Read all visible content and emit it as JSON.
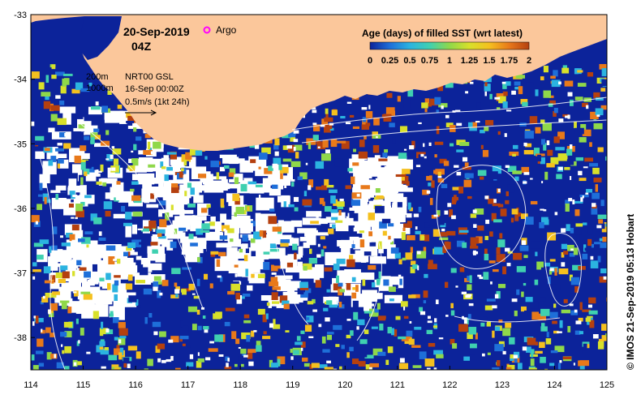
{
  "map": {
    "date": "20-Sep-2019",
    "hour": "04Z",
    "argo_label": "Argo",
    "isobath_labels": [
      "200m",
      "1000m"
    ],
    "altimetry_label": "NRT00 GSL",
    "altimetry_date": "16-Sep 00:00Z",
    "velocity_scale_label": "0.5m/s (1kt 24h)",
    "credit": "© IMOS 21-Sep-2019 05:13 Hobart",
    "colors": {
      "land": "#fbc79b",
      "ocean_deep": "#0c239a",
      "argo_marker": "#ff00ff",
      "frame": "#000000"
    }
  },
  "axes": {
    "lon_ticks": [
      "114",
      "115",
      "116",
      "117",
      "118",
      "119",
      "120",
      "121",
      "122",
      "123",
      "124",
      "125"
    ],
    "lat_ticks": [
      "-33",
      "-34",
      "-35",
      "-36",
      "-37",
      "-38"
    ],
    "lon_range": [
      114,
      125
    ],
    "lat_range": [
      -33,
      -38.5
    ]
  },
  "colorbar": {
    "title": "Age (days) of filled SST (wrt latest)",
    "ticks": [
      "0",
      "0.25",
      "0.5",
      "0.75",
      "1",
      "1.25",
      "1.5",
      "1.75",
      "2"
    ],
    "range": [
      0,
      2
    ],
    "stops": [
      "#0c239a",
      "#1e6fd9",
      "#2bb3e0",
      "#3fd0b0",
      "#8fd84a",
      "#d8e02a",
      "#f5c01e",
      "#e8791a",
      "#b5400f"
    ]
  }
}
